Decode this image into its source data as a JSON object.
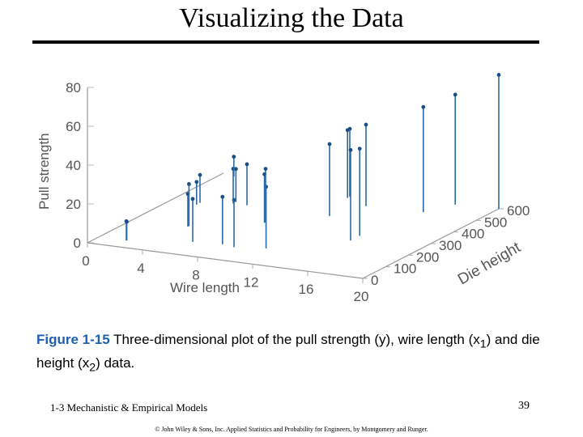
{
  "slide": {
    "title": "Visualizing the Data",
    "caption_label": "Figure 1-15",
    "caption_text_1": "Three-dimensional plot of the pull strength (y), wire length (x",
    "caption_sub_1": "1",
    "caption_text_2": ") and die height (x",
    "caption_sub_2": "2",
    "caption_text_3": ") data.",
    "footer_left": "1-3 Mechanistic & Empirical Models",
    "page_number": "39",
    "copyright": "© John Wiley & Sons, Inc.  Applied Statistics and Probability for Engineers, by Montgomery and Runger."
  },
  "chart_data": {
    "type": "scatter",
    "projection": "3d",
    "marker_style": "stem",
    "x_label": "Wire length",
    "y_label": "Die height",
    "z_label": "Pull strength",
    "x_ticks": [
      "0",
      "4",
      "8",
      "12",
      "16",
      "20"
    ],
    "y_ticks": [
      "0",
      "100",
      "200",
      "300",
      "400",
      "500",
      "600"
    ],
    "z_ticks": [
      "0",
      "20",
      "40",
      "60",
      "80"
    ],
    "x_range": [
      0,
      20
    ],
    "y_range": [
      0,
      600
    ],
    "z_range": [
      0,
      80
    ],
    "color": "#2a6aa8",
    "points": [
      {
        "x": 2,
        "y": 50,
        "z": 9.95
      },
      {
        "x": 8,
        "y": 110,
        "z": 24.45
      },
      {
        "x": 11,
        "y": 120,
        "z": 31.75
      },
      {
        "x": 10,
        "y": 550,
        "z": 35.0
      },
      {
        "x": 8,
        "y": 295,
        "z": 25.02
      },
      {
        "x": 4,
        "y": 200,
        "z": 16.86
      },
      {
        "x": 2,
        "y": 375,
        "z": 14.38
      },
      {
        "x": 2,
        "y": 52,
        "z": 9.6
      },
      {
        "x": 9,
        "y": 100,
        "z": 24.35
      },
      {
        "x": 8,
        "y": 300,
        "z": 27.5
      },
      {
        "x": 4,
        "y": 412,
        "z": 17.08
      },
      {
        "x": 11,
        "y": 400,
        "z": 37.0
      },
      {
        "x": 12,
        "y": 500,
        "z": 41.95
      },
      {
        "x": 2,
        "y": 360,
        "z": 11.66
      },
      {
        "x": 4,
        "y": 205,
        "z": 21.65
      },
      {
        "x": 4,
        "y": 400,
        "z": 17.89
      },
      {
        "x": 20,
        "y": 600,
        "z": 69.0
      },
      {
        "x": 1,
        "y": 585,
        "z": 10.3
      },
      {
        "x": 10,
        "y": 540,
        "z": 34.93
      },
      {
        "x": 15,
        "y": 250,
        "z": 46.59
      },
      {
        "x": 15,
        "y": 290,
        "z": 44.88
      },
      {
        "x": 16,
        "y": 510,
        "z": 54.12
      },
      {
        "x": 17,
        "y": 590,
        "z": 56.63
      },
      {
        "x": 6,
        "y": 100,
        "z": 22.13
      },
      {
        "x": 5,
        "y": 400,
        "z": 21.15
      }
    ]
  }
}
